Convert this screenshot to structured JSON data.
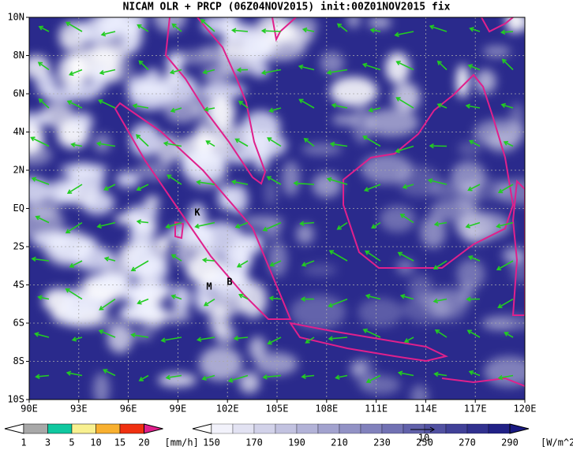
{
  "header": {
    "title": "NICAM OLR + PRCP (06Z04NOV2015) init:00Z01NOV2015 fix"
  },
  "map": {
    "lon_ticks": [
      {
        "value": 90,
        "label": "90E"
      },
      {
        "value": 93,
        "label": "93E"
      },
      {
        "value": 96,
        "label": "96E"
      },
      {
        "value": 99,
        "label": "99E"
      },
      {
        "value": 102,
        "label": "102E"
      },
      {
        "value": 105,
        "label": "105E"
      },
      {
        "value": 108,
        "label": "108E"
      },
      {
        "value": 111,
        "label": "111E"
      },
      {
        "value": 114,
        "label": "114E"
      },
      {
        "value": 117,
        "label": "117E"
      },
      {
        "value": 120,
        "label": "120E"
      }
    ],
    "lat_ticks": [
      {
        "value": 10,
        "label": "10N"
      },
      {
        "value": 8,
        "label": "8N"
      },
      {
        "value": 6,
        "label": "6N"
      },
      {
        "value": 4,
        "label": "4N"
      },
      {
        "value": 2,
        "label": "2N"
      },
      {
        "value": 0,
        "label": "EQ"
      },
      {
        "value": -2,
        "label": "2S"
      },
      {
        "value": -4,
        "label": "4S"
      },
      {
        "value": -6,
        "label": "6S"
      },
      {
        "value": -8,
        "label": "8S"
      },
      {
        "value": -10,
        "label": "10S"
      }
    ],
    "stations": [
      {
        "label": "K"
      },
      {
        "label": "M"
      },
      {
        "label": "B"
      }
    ]
  },
  "precip_legend": {
    "ticks": [
      1,
      3,
      5,
      10,
      15,
      20
    ],
    "unit": "[mm/h]",
    "colors": [
      "#a8a8a8",
      "#10c8a0",
      "#f8f090",
      "#f8b030",
      "#f03010",
      "#e0208c"
    ]
  },
  "olr_legend": {
    "ticks": [
      150,
      170,
      190,
      210,
      230,
      250,
      270,
      290
    ],
    "unit": "[W/m^2]"
  },
  "vector_reference": {
    "label": "10"
  }
}
